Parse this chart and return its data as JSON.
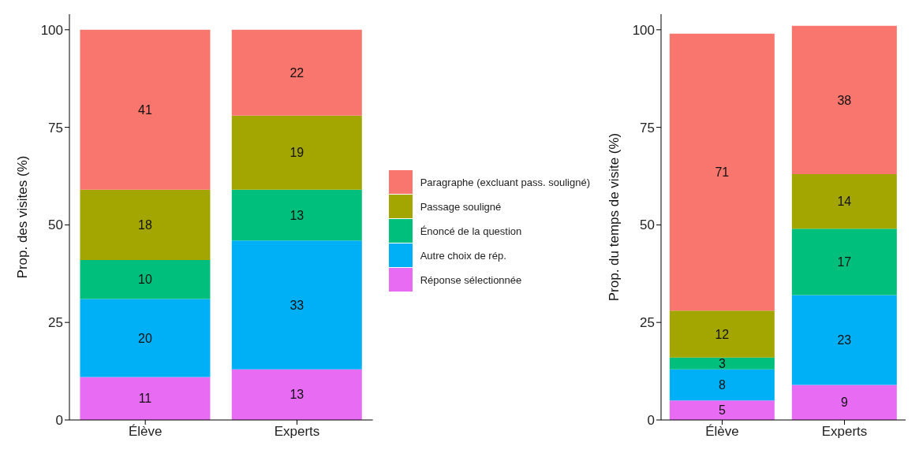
{
  "chart_data": [
    {
      "type": "bar",
      "stacked": true,
      "ylabel": "Prop. des visites (%)",
      "categories": [
        "Élève",
        "Experts"
      ],
      "ylim": [
        0,
        104
      ],
      "yticks": [
        0,
        25,
        50,
        75,
        100
      ],
      "grid": false,
      "legend": "right",
      "data_labels": true,
      "series": [
        {
          "name": "Réponse sélectionnée",
          "color": "#e76bf3",
          "values": [
            11,
            13
          ]
        },
        {
          "name": "Autre choix de rép.",
          "color": "#00b0f6",
          "values": [
            20,
            33
          ]
        },
        {
          "name": "Énoncé de la question",
          "color": "#00bf7d",
          "values": [
            10,
            13
          ]
        },
        {
          "name": "Passage souligné",
          "color": "#a3a500",
          "values": [
            18,
            19
          ]
        },
        {
          "name": "Paragraphe (excluant pass. souligné)",
          "color": "#f8766d",
          "values": [
            41,
            22
          ]
        }
      ]
    },
    {
      "type": "bar",
      "stacked": true,
      "ylabel": "Prop. du temps de visite (%)",
      "categories": [
        "Élève",
        "Experts"
      ],
      "ylim": [
        0,
        104
      ],
      "yticks": [
        0,
        25,
        50,
        75,
        100
      ],
      "grid": false,
      "legend": false,
      "data_labels": true,
      "series": [
        {
          "color": "#e76bf3",
          "values": [
            5,
            9
          ]
        },
        {
          "color": "#00b0f6",
          "values": [
            8,
            23
          ]
        },
        {
          "color": "#00bf7d",
          "values": [
            3,
            17
          ]
        },
        {
          "color": "#a3a500",
          "values": [
            12,
            14
          ]
        },
        {
          "color": "#f8766d",
          "values": [
            71,
            38
          ]
        }
      ]
    }
  ]
}
